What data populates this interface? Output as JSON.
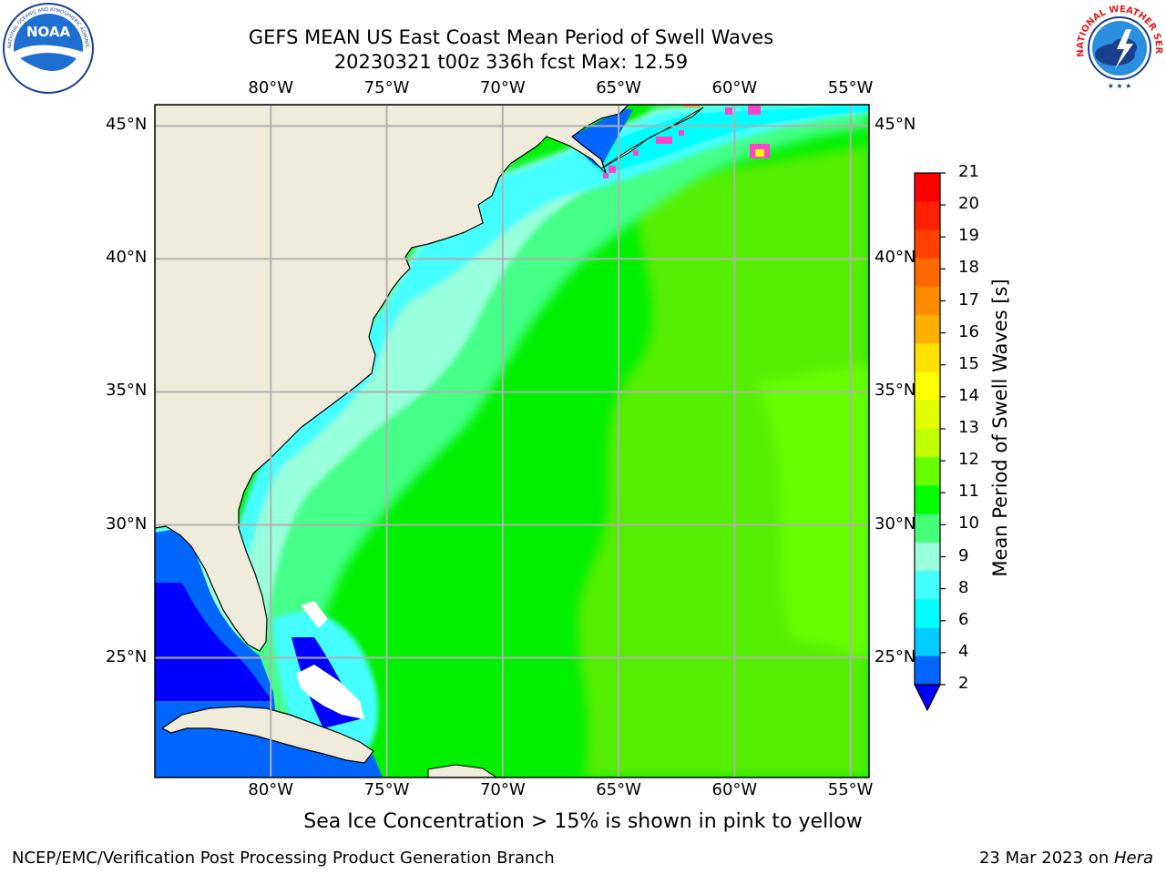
{
  "header": {
    "title_line1": "GEFS MEAN US East Coast Mean Period of Swell Waves",
    "title_line2": "20230321 t00z 336h fcst   Max: 12.59"
  },
  "logos": {
    "left": {
      "icon": "noaa-logo",
      "text": "NOAA",
      "ring_text": "NATIONAL OCEANIC AND ATMOSPHERIC ADMINISTRATION · U.S. DEPARTMENT OF COMMERCE"
    },
    "right": {
      "icon": "nws-logo",
      "ring_text": "NATIONAL WEATHER SERVICE"
    }
  },
  "map": {
    "lon_labels": [
      "80°W",
      "75°W",
      "70°W",
      "65°W",
      "60°W",
      "55°W"
    ],
    "lat_labels": [
      "45°N",
      "40°N",
      "35°N",
      "30°N",
      "25°N"
    ],
    "lon_range": [
      -85,
      -54.2
    ],
    "lat_range": [
      20.5,
      45.8
    ],
    "colors": {
      "land": "#efecdc",
      "grid": "#b0b0b0",
      "coast": "#000000"
    }
  },
  "colorbar": {
    "title": "Mean Period of Swell Waves [s]",
    "ticks": [
      "21",
      "20",
      "19",
      "18",
      "17",
      "16",
      "15",
      "14",
      "13",
      "12",
      "11",
      "10",
      "9",
      "8",
      "6",
      "4",
      "2"
    ],
    "colors_top_to_bottom": [
      "#ff0000",
      "#ff2000",
      "#ff4000",
      "#ff6a00",
      "#ff8c00",
      "#ffb000",
      "#ffe000",
      "#ffff00",
      "#e0ff00",
      "#c0ff00",
      "#66ff00",
      "#00ff00",
      "#44ff77",
      "#99ffdd",
      "#44ffff",
      "#00ffff",
      "#00ccff",
      "#0066ff"
    ],
    "extend_color": "#0000ff"
  },
  "caption": "Sea Ice Concentration > 15% is shown in pink to yellow",
  "footer": {
    "left": "NCEP/EMC/Verification Post Processing Product Generation Branch",
    "right_date": "23 Mar 2023 on ",
    "right_host": "Hera"
  }
}
